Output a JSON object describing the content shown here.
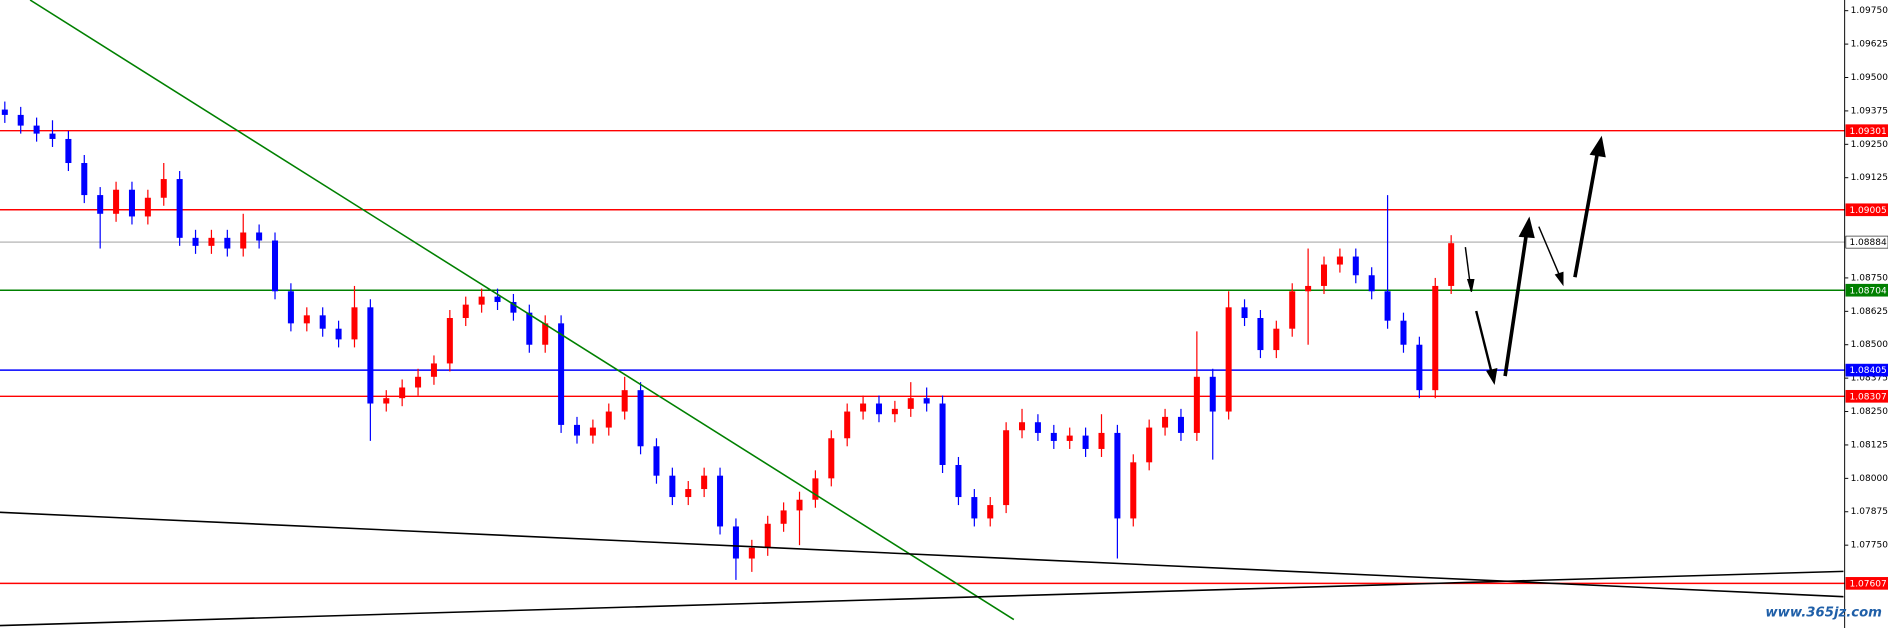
{
  "chart_data": {
    "type": "candlestick",
    "ylim": [
      1.0744,
      1.0979
    ],
    "yticks": [
      {
        "value": 1.0975,
        "label": "1.09750"
      },
      1.09625,
      {
        "value": 1.095,
        "label": "1.09500"
      },
      1.09375,
      {
        "value": 1.0925,
        "label": "1.09250"
      },
      1.09125,
      {
        "value": 1.0875,
        "label": "1.08750"
      },
      1.08625,
      {
        "value": 1.085,
        "label": "1.08500"
      },
      1.08375,
      {
        "value": 1.0825,
        "label": "1.08250"
      },
      1.08125,
      {
        "value": 1.08,
        "label": "1.08000"
      },
      1.07875,
      {
        "value": 1.0775,
        "label": "1.07750"
      }
    ],
    "up_color": "#ff0000",
    "down_color": "#0000ff",
    "levels": [
      {
        "value": 1.09301,
        "color": "#ff0000"
      },
      {
        "value": 1.09005,
        "color": "#ff0000"
      },
      {
        "value": 1.08884,
        "color": "#c0c0c0"
      },
      {
        "value": 1.08704,
        "color": "#008000"
      },
      {
        "value": 1.08405,
        "color": "#0000ff"
      },
      {
        "value": 1.08307,
        "color": "#ff0000"
      },
      {
        "value": 1.07607,
        "color": "#ff0000"
      }
    ],
    "watermark": "www.365jz.com",
    "candles": [
      [
        1.0938,
        1.0941,
        1.0933,
        1.0936
      ],
      [
        1.0936,
        1.0939,
        1.0929,
        1.0932
      ],
      [
        1.0932,
        1.0935,
        1.0926,
        1.0929
      ],
      [
        1.0929,
        1.0934,
        1.0924,
        1.0927
      ],
      [
        1.0927,
        1.093,
        1.0915,
        1.0918
      ],
      [
        1.0918,
        1.0921,
        1.0903,
        1.0906
      ],
      [
        1.0906,
        1.0909,
        1.0886,
        1.0899
      ],
      [
        1.0899,
        1.0911,
        1.0896,
        1.0908
      ],
      [
        1.0908,
        1.0911,
        1.0895,
        1.0898
      ],
      [
        1.0898,
        1.0908,
        1.0895,
        1.0905
      ],
      [
        1.0905,
        1.0918,
        1.0902,
        1.0912
      ],
      [
        1.0912,
        1.0915,
        1.0887,
        1.089
      ],
      [
        1.089,
        1.0893,
        1.0884,
        1.0887
      ],
      [
        1.0887,
        1.0893,
        1.0884,
        1.089
      ],
      [
        1.089,
        1.0893,
        1.0883,
        1.0886
      ],
      [
        1.0886,
        1.0899,
        1.0883,
        1.0892
      ],
      [
        1.0892,
        1.0895,
        1.0886,
        1.0889
      ],
      [
        1.0889,
        1.0892,
        1.0867,
        1.087
      ],
      [
        1.087,
        1.0873,
        1.0855,
        1.0858
      ],
      [
        1.0858,
        1.0864,
        1.0855,
        1.0861
      ],
      [
        1.0861,
        1.0864,
        1.0853,
        1.0856
      ],
      [
        1.0856,
        1.0859,
        1.0849,
        1.0852
      ],
      [
        1.0852,
        1.0872,
        1.0849,
        1.0864
      ],
      [
        1.0864,
        1.0867,
        1.0814,
        1.0828
      ],
      [
        1.0828,
        1.0833,
        1.0825,
        1.083
      ],
      [
        1.083,
        1.0837,
        1.0827,
        1.0834
      ],
      [
        1.0834,
        1.0841,
        1.0831,
        1.0838
      ],
      [
        1.0838,
        1.0846,
        1.0835,
        1.0843
      ],
      [
        1.0843,
        1.0863,
        1.084,
        1.086
      ],
      [
        1.086,
        1.0868,
        1.0857,
        1.0865
      ],
      [
        1.0865,
        1.0871,
        1.0862,
        1.0868
      ],
      [
        1.0868,
        1.0871,
        1.0863,
        1.0866
      ],
      [
        1.0866,
        1.0869,
        1.0859,
        1.0862
      ],
      [
        1.0862,
        1.0865,
        1.0847,
        1.085
      ],
      [
        1.085,
        1.0861,
        1.0847,
        1.0858
      ],
      [
        1.0858,
        1.0861,
        1.0817,
        1.082
      ],
      [
        1.082,
        1.0823,
        1.0813,
        1.0816
      ],
      [
        1.0816,
        1.0822,
        1.0813,
        1.0819
      ],
      [
        1.0819,
        1.0828,
        1.0816,
        1.0825
      ],
      [
        1.0825,
        1.0838,
        1.0822,
        1.0833
      ],
      [
        1.0833,
        1.0836,
        1.0809,
        1.0812
      ],
      [
        1.0812,
        1.0815,
        1.0798,
        1.0801
      ],
      [
        1.0801,
        1.0804,
        1.079,
        1.0793
      ],
      [
        1.0793,
        1.0799,
        1.079,
        1.0796
      ],
      [
        1.0796,
        1.0804,
        1.0793,
        1.0801
      ],
      [
        1.0801,
        1.0804,
        1.0779,
        1.0782
      ],
      [
        1.0782,
        1.0785,
        1.0762,
        1.077
      ],
      [
        1.077,
        1.0777,
        1.0765,
        1.0774
      ],
      [
        1.0774,
        1.0786,
        1.0771,
        1.0783
      ],
      [
        1.0783,
        1.0791,
        1.078,
        1.0788
      ],
      [
        1.0788,
        1.0795,
        1.0775,
        1.0792
      ],
      [
        1.0792,
        1.0803,
        1.0789,
        1.08
      ],
      [
        1.08,
        1.0818,
        1.0797,
        1.0815
      ],
      [
        1.0815,
        1.0828,
        1.0812,
        1.0825
      ],
      [
        1.0825,
        1.0831,
        1.0822,
        1.0828
      ],
      [
        1.0828,
        1.0831,
        1.0821,
        1.0824
      ],
      [
        1.0824,
        1.0829,
        1.0821,
        1.0826
      ],
      [
        1.0826,
        1.0836,
        1.0823,
        1.083
      ],
      [
        1.083,
        1.0834,
        1.0825,
        1.0828
      ],
      [
        1.0828,
        1.0831,
        1.0802,
        1.0805
      ],
      [
        1.0805,
        1.0808,
        1.079,
        1.0793
      ],
      [
        1.0793,
        1.0796,
        1.0782,
        1.0785
      ],
      [
        1.0785,
        1.0793,
        1.0782,
        1.079
      ],
      [
        1.079,
        1.0821,
        1.0787,
        1.0818
      ],
      [
        1.0818,
        1.0826,
        1.0815,
        1.0821
      ],
      [
        1.0821,
        1.0824,
        1.0814,
        1.0817
      ],
      [
        1.0817,
        1.082,
        1.0811,
        1.0814
      ],
      [
        1.0814,
        1.0819,
        1.0811,
        1.0816
      ],
      [
        1.0816,
        1.0819,
        1.0808,
        1.0811
      ],
      [
        1.0811,
        1.0824,
        1.0808,
        1.0817
      ],
      [
        1.0817,
        1.082,
        1.077,
        1.0785
      ],
      [
        1.0785,
        1.0809,
        1.0782,
        1.0806
      ],
      [
        1.0806,
        1.0822,
        1.0803,
        1.0819
      ],
      [
        1.0819,
        1.0826,
        1.0816,
        1.0823
      ],
      [
        1.0823,
        1.0826,
        1.0814,
        1.0817
      ],
      [
        1.0817,
        1.0855,
        1.0814,
        1.0838
      ],
      [
        1.0838,
        1.0841,
        1.0807,
        1.0825
      ],
      [
        1.0825,
        1.087,
        1.0822,
        1.0864
      ],
      [
        1.0864,
        1.0867,
        1.0857,
        1.086
      ],
      [
        1.086,
        1.0863,
        1.0845,
        1.0848
      ],
      [
        1.0848,
        1.0859,
        1.0845,
        1.0856
      ],
      [
        1.0856,
        1.0873,
        1.0853,
        1.087
      ],
      [
        1.087,
        1.0886,
        1.085,
        1.0872
      ],
      [
        1.0872,
        1.0883,
        1.0869,
        1.088
      ],
      [
        1.088,
        1.0886,
        1.0877,
        1.0883
      ],
      [
        1.0883,
        1.0886,
        1.0873,
        1.0876
      ],
      [
        1.0876,
        1.0879,
        1.0867,
        1.087
      ],
      [
        1.087,
        1.0906,
        1.0856,
        1.0859
      ],
      [
        1.0859,
        1.0862,
        1.0847,
        1.085
      ],
      [
        1.085,
        1.0853,
        1.083,
        1.0833
      ],
      [
        1.0833,
        1.0875,
        1.083,
        1.0872
      ],
      [
        1.0872,
        1.0891,
        1.0869,
        1.0888
      ]
    ]
  }
}
